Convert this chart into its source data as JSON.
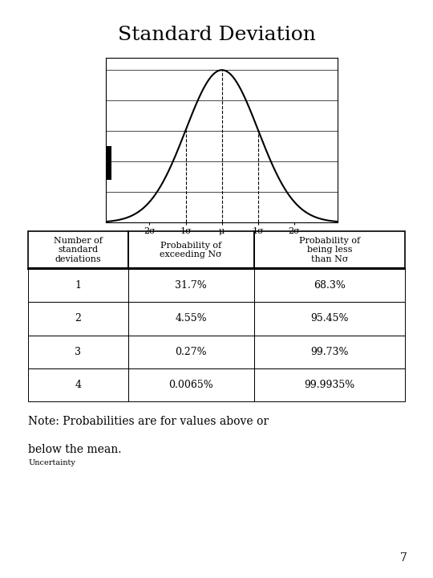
{
  "title": "Standard Deviation",
  "table_headers": [
    "Number of\nstandard\ndeviations",
    "Probability of\nexceeding Nσ",
    "Probability of\nbeing less\nthan Nσ"
  ],
  "table_rows": [
    [
      "1",
      "31.7%",
      "68.3%"
    ],
    [
      "2",
      "4.55%",
      "95.45%"
    ],
    [
      "3",
      "0.27%",
      "99.73%"
    ],
    [
      "4",
      "0.0065%",
      "99.9935%"
    ]
  ],
  "note_line1": "Note: Probabilities are for values above or",
  "note_line2": "below the mean.",
  "note_line3": "Uncertainty",
  "page_number": "7",
  "bg_color": "#ffffff",
  "text_color": "#000000",
  "curve_color": "#000000",
  "x_tick_labels": [
    "2σ",
    "1σ",
    "μ",
    "1σ",
    "2σ"
  ],
  "x_tick_positions": [
    -2,
    -1,
    0,
    1,
    2
  ],
  "title_fontsize": 18,
  "header_fontsize": 8,
  "data_fontsize": 9,
  "note_fontsize": 10,
  "small_fontsize": 7
}
